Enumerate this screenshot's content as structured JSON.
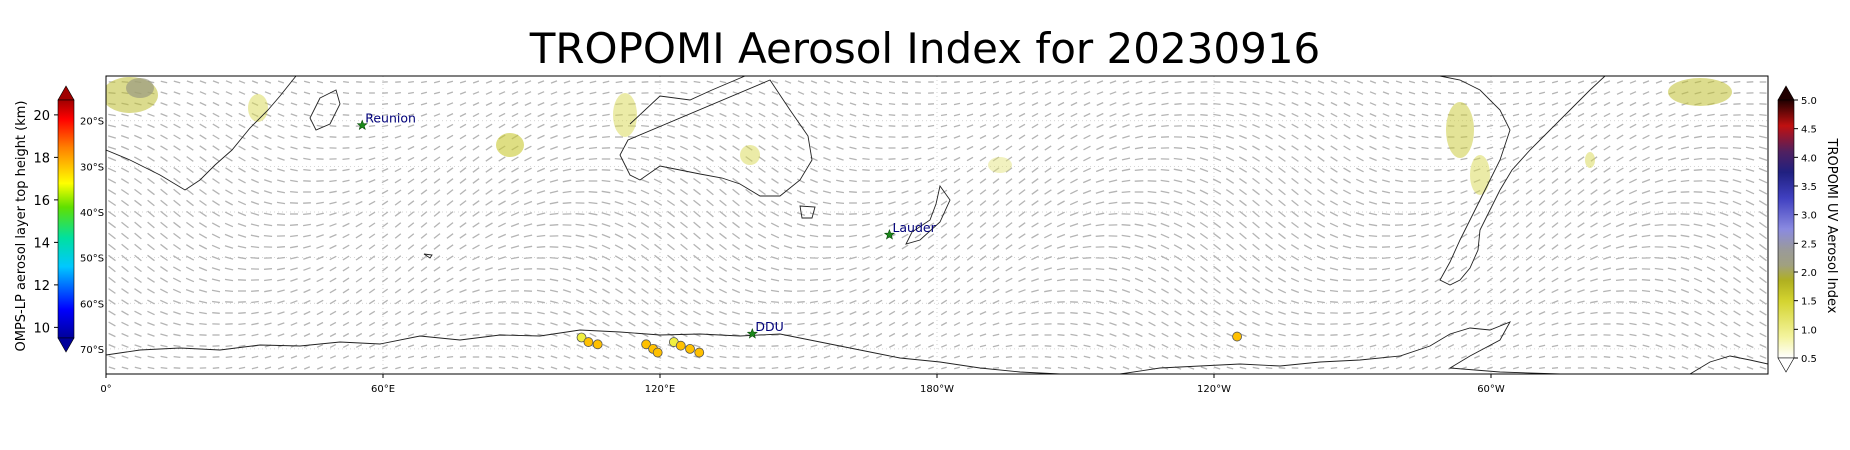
{
  "title": "TROPOMI Aerosol Index for 20230916",
  "left_colorbar": {
    "label": "OMPS-LP aerosol layer top height (km)",
    "ticks": [
      "10",
      "12",
      "14",
      "16",
      "18",
      "20"
    ],
    "range": [
      9.5,
      20.7
    ]
  },
  "right_colorbar": {
    "label": "TROPOMI UV Aerosol Index",
    "ticks": [
      "0.5",
      "1.0",
      "1.5",
      "2.0",
      "2.5",
      "3.0",
      "3.5",
      "4.0",
      "4.5",
      "5.0"
    ],
    "range": [
      0.5,
      5.0
    ]
  },
  "map": {
    "lon_ticks": [
      "0°",
      "60°E",
      "120°E",
      "180°W",
      "120°W",
      "60°W"
    ],
    "lat_ticks": [
      "20°S",
      "30°S",
      "40°S",
      "50°S",
      "60°S",
      "70°S"
    ],
    "stations": [
      {
        "name": "Reunion",
        "lon": 55.5,
        "lat": -21.0
      },
      {
        "name": "Lauder",
        "lon": 169.7,
        "lat": -45.0
      },
      {
        "name": "DDU",
        "lon": 140.0,
        "lat": -66.7
      }
    ],
    "omps_points": [
      {
        "lon": 103,
        "lat": -67.5,
        "height": 16.5
      },
      {
        "lon": 104.5,
        "lat": -68.5,
        "height": 16.8
      },
      {
        "lon": 106.5,
        "lat": -69.0,
        "height": 16.9
      },
      {
        "lon": 117,
        "lat": -69.0,
        "height": 16.9
      },
      {
        "lon": 118.5,
        "lat": -70.0,
        "height": 16.8
      },
      {
        "lon": 119.5,
        "lat": -70.8,
        "height": 16.9
      },
      {
        "lon": 123,
        "lat": -68.5,
        "height": 16.7
      },
      {
        "lon": 124.5,
        "lat": -69.3,
        "height": 16.9
      },
      {
        "lon": 126.5,
        "lat": -70.0,
        "height": 16.9
      },
      {
        "lon": 128.5,
        "lat": -70.8,
        "height": 16.8
      },
      {
        "lon": 245,
        "lat": -67.3,
        "height": 16.9
      }
    ]
  }
}
